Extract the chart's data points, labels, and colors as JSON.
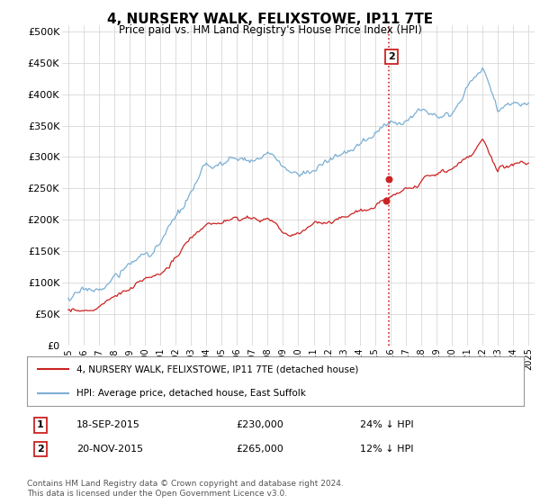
{
  "title": "4, NURSERY WALK, FELIXSTOWE, IP11 7TE",
  "subtitle": "Price paid vs. HM Land Registry's House Price Index (HPI)",
  "y_ticks": [
    0,
    50000,
    100000,
    150000,
    200000,
    250000,
    300000,
    350000,
    400000,
    450000,
    500000
  ],
  "y_tick_labels": [
    "£0",
    "£50K",
    "£100K",
    "£150K",
    "£200K",
    "£250K",
    "£300K",
    "£350K",
    "£400K",
    "£450K",
    "£500K"
  ],
  "hpi_color": "#7bafd4",
  "price_color": "#cc2222",
  "vline_color": "#cc2222",
  "sale1_year": 2015.72,
  "sale1_price": 230000,
  "sale2_year": 2015.92,
  "sale2_price": 265000,
  "annotation1": {
    "label": "1",
    "date": "18-SEP-2015",
    "price": "£230,000",
    "note": "24% ↓ HPI"
  },
  "annotation2": {
    "label": "2",
    "date": "20-NOV-2015",
    "price": "£265,000",
    "note": "12% ↓ HPI"
  },
  "legend_line1": "4, NURSERY WALK, FELIXSTOWE, IP11 7TE (detached house)",
  "legend_line2": "HPI: Average price, detached house, East Suffolk",
  "footer": "Contains HM Land Registry data © Crown copyright and database right 2024.\nThis data is licensed under the Open Government Licence v3.0.",
  "background_color": "#ffffff",
  "grid_color": "#d0d0d0"
}
